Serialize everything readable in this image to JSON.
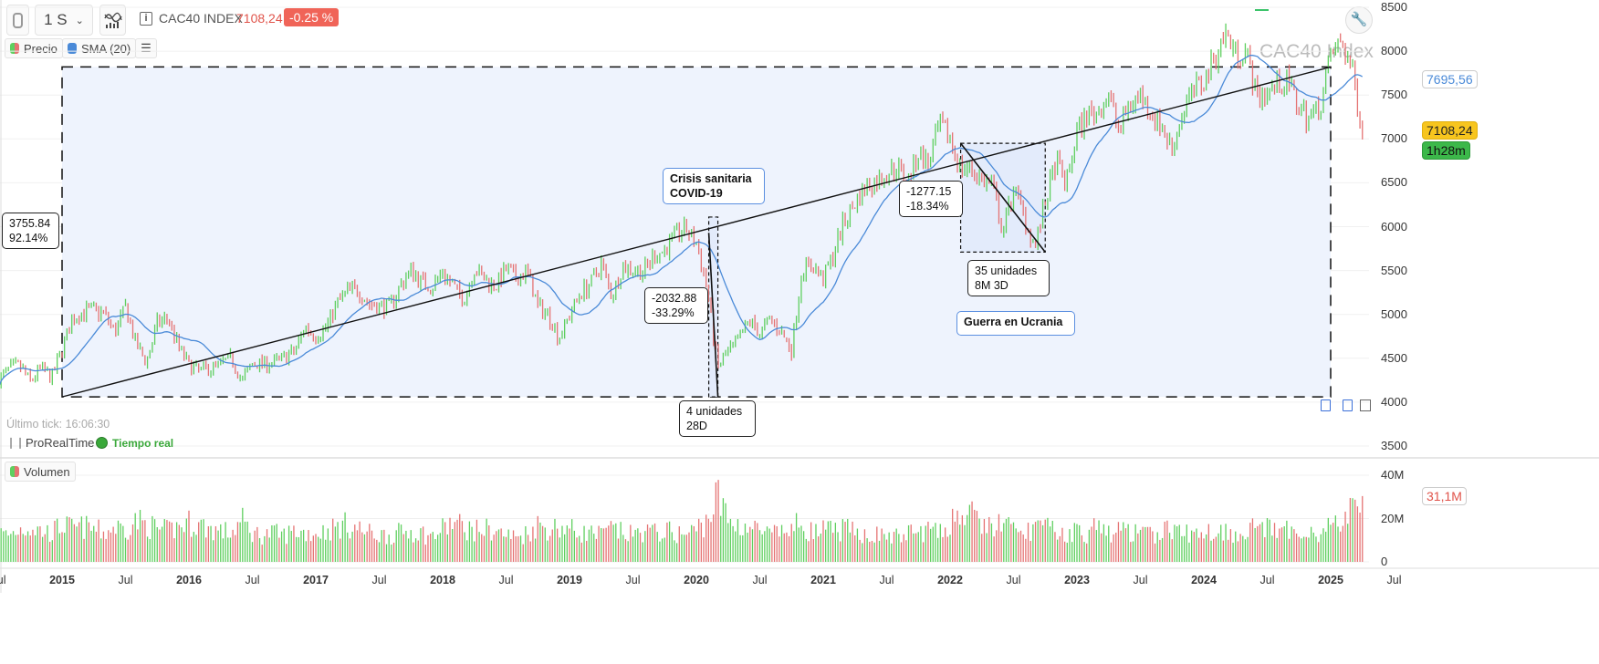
{
  "toolbar": {
    "link_icon": "link-icon",
    "timeframe": "1 S",
    "indicators_icon": "chart-indicators-icon",
    "info_icon": "info-icon",
    "instrument": "CAC40 INDEX",
    "last_price": "7108,24",
    "change": "-0.25 %"
  },
  "legend": {
    "price": "Precio",
    "sma": "SMA (20)",
    "list_icon": "list-icon",
    "volume": "Volumen"
  },
  "watermark": "CAC40 Index",
  "price_axis": {
    "ticks": [
      "8500",
      "8000",
      "7500",
      "7000",
      "6500",
      "6000",
      "5500",
      "5000",
      "4500",
      "4000",
      "3500"
    ],
    "sma_value": "7695,56",
    "last_value": "7108,24",
    "countdown": "1h28m"
  },
  "volume_axis": {
    "ticks": [
      "40M",
      "20M",
      "0"
    ],
    "last_value": "31,1M"
  },
  "time_axis": [
    {
      "label": "Jul",
      "year": false
    },
    {
      "label": "2015",
      "year": true
    },
    {
      "label": "Jul",
      "year": false
    },
    {
      "label": "2016",
      "year": true
    },
    {
      "label": "Jul",
      "year": false
    },
    {
      "label": "2017",
      "year": true
    },
    {
      "label": "Jul",
      "year": false
    },
    {
      "label": "2018",
      "year": true
    },
    {
      "label": "Jul",
      "year": false
    },
    {
      "label": "2019",
      "year": true
    },
    {
      "label": "Jul",
      "year": false
    },
    {
      "label": "2020",
      "year": true
    },
    {
      "label": "Jul",
      "year": false
    },
    {
      "label": "2021",
      "year": true
    },
    {
      "label": "Jul",
      "year": false
    },
    {
      "label": "2022",
      "year": true
    },
    {
      "label": "Jul",
      "year": false
    },
    {
      "label": "2023",
      "year": true
    },
    {
      "label": "Jul",
      "year": false
    },
    {
      "label": "2024",
      "year": true
    },
    {
      "label": "Jul",
      "year": false
    },
    {
      "label": "2025",
      "year": true
    },
    {
      "label": "Jul",
      "year": false
    }
  ],
  "status": {
    "last_tick": "Último tick: 16:06:30",
    "brand": "ProRealTime",
    "realtime": "Tiempo real"
  },
  "annotations": {
    "total_move": [
      "3755.84",
      "92.14%"
    ],
    "covid_title": [
      "Crisis sanitaria",
      "COVID-19"
    ],
    "covid_move": [
      "-2032.88",
      "-33.29%"
    ],
    "covid_duration": [
      "4 unidades",
      "28D"
    ],
    "ukraine_move": [
      "-1277.15",
      "-18.34%"
    ],
    "ukraine_duration": [
      "35 unidades",
      "8M 3D"
    ],
    "ukraine_title": "Guerra en Ucrania"
  },
  "colors": {
    "up": "#5fcf5f",
    "down": "#e57373",
    "sma": "#4a8ad8",
    "zone": "#eef3fd",
    "badge_red": "#f06458",
    "badge_yellow": "#f7c51e",
    "badge_green": "#3cb84a"
  },
  "chart_data": {
    "type": "candlestick",
    "timeframe": "weekly",
    "instrument": "CAC40 INDEX",
    "ylim": [
      3500,
      8500
    ],
    "volume_ylim_millions": [
      0,
      45
    ],
    "monthly_close": {
      "start": "2014-07",
      "values": [
        4247,
        4381,
        4416,
        4233,
        4390,
        4273,
        4604,
        4951,
        5034,
        5046,
        5007,
        4790,
        5082,
        4653,
        4455,
        4897,
        4957,
        4637,
        4417,
        4354,
        4385,
        4429,
        4506,
        4237,
        4440,
        4438,
        4448,
        4509,
        4578,
        4862,
        4749,
        4858,
        5123,
        5267,
        5283,
        5121,
        5093,
        5086,
        5330,
        5503,
        5373,
        5313,
        5482,
        5320,
        5167,
        5521,
        5398,
        5324,
        5511,
        5407,
        5493,
        5093,
        5003,
        4731,
        4992,
        5241,
        5351,
        5586,
        5207,
        5539,
        5519,
        5480,
        5678,
        5730,
        5905,
        5978,
        5806,
        5310,
        4396,
        4572,
        4695,
        4936,
        4784,
        4947,
        4803,
        4594,
        5518,
        5551,
        5399,
        5703,
        6067,
        6269,
        6447,
        6508,
        6613,
        6680,
        6520,
        6830,
        6721,
        7153,
        6999,
        6659,
        6660,
        6534,
        6469,
        5923,
        6448,
        6125,
        5762,
        6266,
        6739,
        6474,
        7082,
        7268,
        7322,
        7492,
        7099,
        7400,
        7498,
        7316,
        7135,
        6885,
        7311,
        7543,
        7657,
        7927,
        8206,
        7985,
        7993,
        7479,
        7531,
        7631,
        7636,
        7350,
        7235,
        7381,
        7950,
        8111,
        7791,
        7108
      ]
    },
    "monthly_volume_millions": [
      14,
      13,
      16,
      17,
      15,
      14,
      18,
      16,
      17,
      16,
      14,
      17,
      16,
      20,
      18,
      16,
      15,
      17,
      19,
      18,
      16,
      15,
      14,
      20,
      14,
      13,
      14,
      13,
      15,
      14,
      14,
      15,
      17,
      18,
      16,
      14,
      13,
      13,
      14,
      15,
      14,
      12,
      16,
      19,
      17,
      15,
      16,
      15,
      13,
      12,
      14,
      18,
      16,
      17,
      16,
      14,
      14,
      13,
      16,
      14,
      13,
      15,
      14,
      15,
      14,
      13,
      16,
      20,
      32,
      20,
      18,
      17,
      15,
      13,
      14,
      16,
      19,
      14,
      15,
      15,
      16,
      14,
      14,
      13,
      13,
      12,
      14,
      14,
      16,
      13,
      20,
      24,
      22,
      18,
      17,
      19,
      15,
      13,
      18,
      16,
      15,
      13,
      15,
      14,
      17,
      14,
      15,
      15,
      13,
      13,
      15,
      16,
      14,
      13,
      15,
      15,
      15,
      14,
      15,
      18,
      16,
      14,
      15,
      15,
      16,
      13,
      18,
      19,
      24,
      31.1
    ],
    "sma_period": 20,
    "drawings": {
      "range_zone": {
        "from": "2015-01",
        "to": "2025-01",
        "low": 4060,
        "high": 7820
      },
      "trend_line": {
        "from": [
          "2015-01",
          4060
        ],
        "to": [
          "2025-01",
          7820
        ]
      },
      "covid_zone": {
        "from": "2020-02",
        "to": "2020-03",
        "low": 4060,
        "high": 6110
      },
      "ukraine_zone": {
        "from": "2022-02",
        "to": "2022-10",
        "low": 5710,
        "high": 6950
      }
    }
  }
}
